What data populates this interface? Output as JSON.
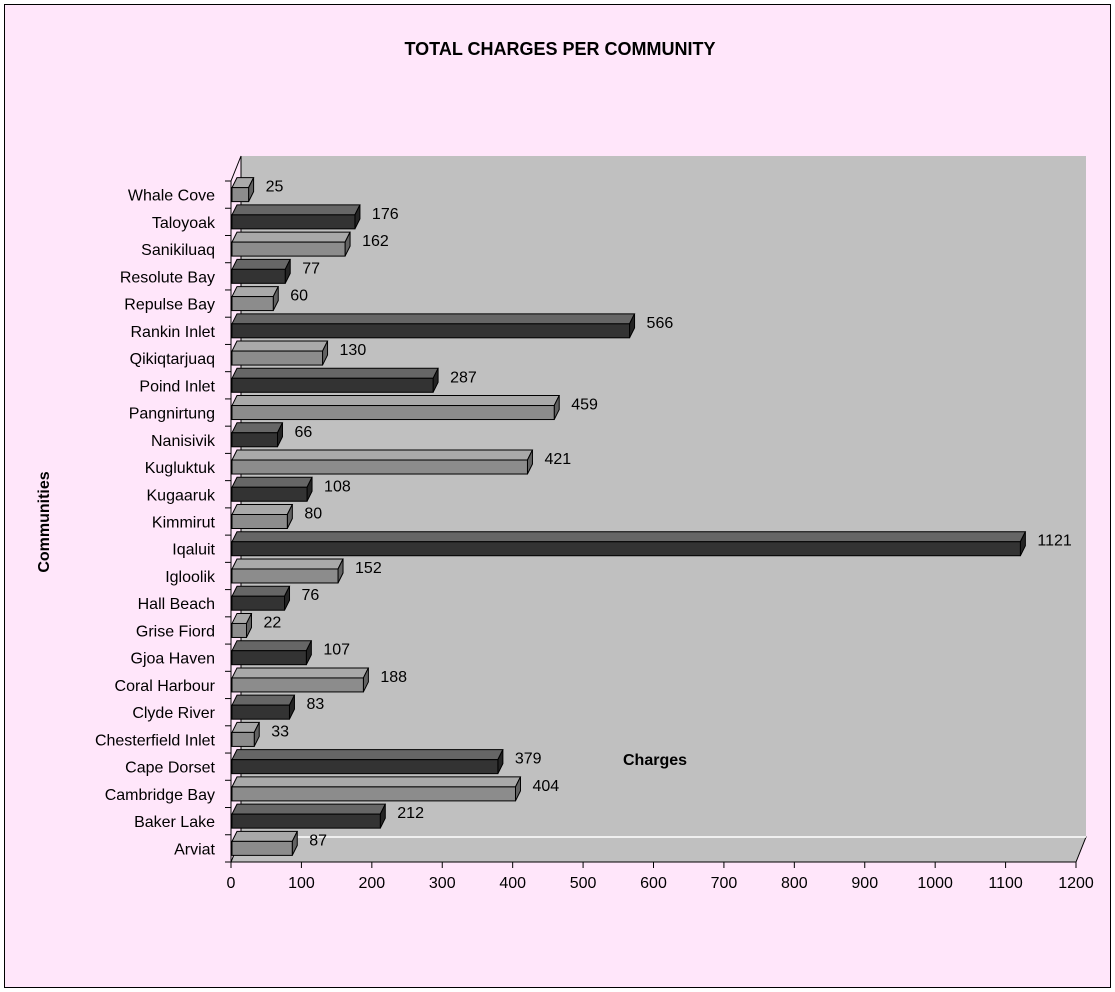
{
  "chart_data": {
    "type": "bar",
    "orientation": "horizontal",
    "style": "3d",
    "title": "TOTAL CHARGES PER COMMUNITY",
    "xlabel": "Charges",
    "ylabel": "Communities",
    "xlim": [
      0,
      1200
    ],
    "xticks": [
      0,
      100,
      200,
      300,
      400,
      500,
      600,
      700,
      800,
      900,
      1000,
      1100,
      1200
    ],
    "grid": false,
    "legend": "none",
    "categories": [
      "Arviat",
      "Baker Lake",
      "Cambridge Bay",
      "Cape Dorset",
      "Chesterfield Inlet",
      "Clyde River",
      "Coral Harbour",
      "Gjoa Haven",
      "Grise Fiord",
      "Hall Beach",
      "Igloolik",
      "Iqaluit",
      "Kimmirut",
      "Kugaaruk",
      "Kugluktuk",
      "Nanisivik",
      "Pangnirtung",
      "Poind Inlet",
      "Qikiqtarjuaq",
      "Rankin Inlet",
      "Repulse Bay",
      "Resolute Bay",
      "Sanikiluaq",
      "Taloyoak",
      "Whale Cove"
    ],
    "values": [
      87,
      212,
      404,
      379,
      33,
      83,
      188,
      107,
      22,
      76,
      152,
      1121,
      80,
      108,
      421,
      66,
      459,
      287,
      130,
      566,
      60,
      77,
      162,
      176,
      25
    ],
    "colors": {
      "light_bar": "#8c8c8c",
      "dark_bar": "#333333",
      "plot_wall": "#c0c0c0",
      "background": "#ffe6fa"
    }
  }
}
